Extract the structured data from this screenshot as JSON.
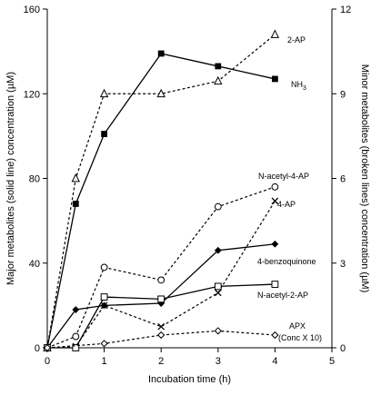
{
  "chart_data": {
    "type": "line",
    "xlabel": "Incubation time (h)",
    "ylabel_left": "Major metabolites (solid line) concentration (µM)",
    "ylabel_right": "Minor metabolites (broken lines) concentration (µM)",
    "xlim": [
      0,
      5
    ],
    "ylim_left": [
      0,
      160
    ],
    "ylim_right": [
      0,
      12
    ],
    "x_ticks": [
      0,
      1,
      2,
      3,
      4,
      5
    ],
    "y_ticks_left": [
      0,
      40,
      80,
      120,
      160
    ],
    "y_ticks_right": [
      0,
      3,
      6,
      9,
      12
    ],
    "grid": false,
    "legend": "none (series labelled directly at line ends)",
    "series": [
      {
        "name": "2-AP",
        "axis": "right",
        "line": "dashed",
        "marker": "open-triangle",
        "x": [
          0,
          0.5,
          1,
          2,
          3,
          4
        ],
        "y": [
          0,
          6.0,
          9.0,
          9.0,
          9.45,
          11.1
        ]
      },
      {
        "name": "NH3",
        "axis": "left",
        "line": "solid",
        "marker": "filled-square",
        "x": [
          0,
          0.5,
          1,
          2,
          3,
          4
        ],
        "y": [
          0,
          68,
          101,
          139,
          133,
          127
        ]
      },
      {
        "name": "N-acetyl-4-AP",
        "axis": "right",
        "line": "dashed",
        "marker": "open-circle",
        "x": [
          0,
          0.5,
          1,
          2,
          3,
          4
        ],
        "y": [
          0,
          0.4,
          2.85,
          2.4,
          5.0,
          5.7
        ]
      },
      {
        "name": "4-AP",
        "axis": "right",
        "line": "dashed",
        "marker": "cross",
        "x": [
          0,
          0.5,
          1,
          2,
          3,
          4
        ],
        "y": [
          0,
          0.05,
          1.5,
          0.75,
          1.95,
          5.2
        ]
      },
      {
        "name": "4-benzoquinone",
        "axis": "left",
        "line": "solid",
        "marker": "filled-diamond",
        "x": [
          0,
          0.5,
          1,
          2,
          3,
          4
        ],
        "y": [
          0,
          18,
          20,
          21,
          46,
          49
        ]
      },
      {
        "name": "N-acetyl-2-AP",
        "axis": "left",
        "line": "solid",
        "marker": "open-square",
        "x": [
          0,
          0.5,
          1,
          2,
          3,
          4
        ],
        "y": [
          0,
          0,
          24,
          23,
          29,
          30
        ]
      },
      {
        "name": "APX",
        "axis": "right",
        "line": "dashed",
        "marker": "open-diamond",
        "x": [
          0,
          1,
          2,
          3,
          4
        ],
        "y": [
          0,
          0.15,
          0.45,
          0.6,
          0.45
        ]
      }
    ],
    "labels": [
      {
        "series": "2-AP",
        "text": "2-AP"
      },
      {
        "series": "NH3",
        "text": "NH",
        "sub": "3"
      },
      {
        "series": "N-acetyl-4-AP",
        "text": "N-acetyl-4-AP"
      },
      {
        "series": "4-AP",
        "text": "4-AP"
      },
      {
        "series": "4-benzoquinone",
        "text": "4-benzoquinone"
      },
      {
        "series": "N-acetyl-2-AP",
        "text": "N-acetyl-2-AP"
      },
      {
        "series": "APX",
        "text": "APX"
      },
      {
        "series": "APX",
        "text": "(Conc X 10)"
      }
    ]
  }
}
